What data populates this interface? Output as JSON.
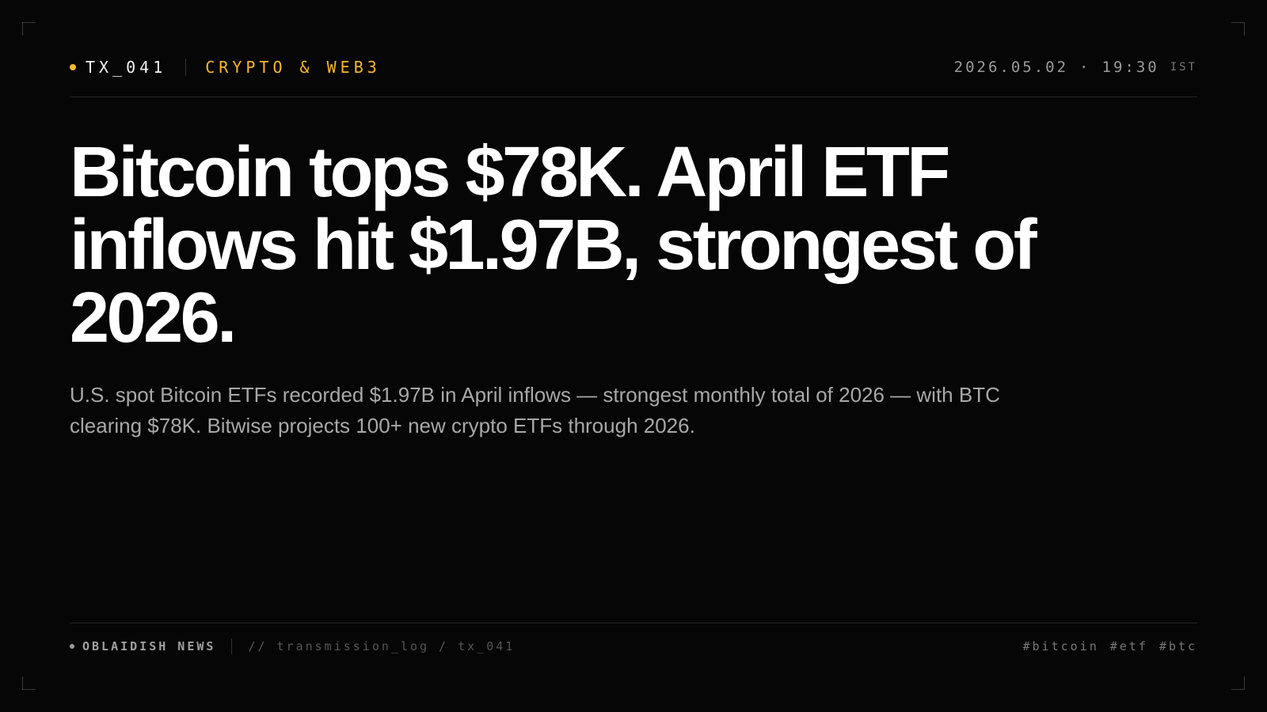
{
  "header": {
    "id": "TX_041",
    "category": "CRYPTO & WEB3",
    "date": "2026.05.02",
    "separator": "·",
    "time": "19:30",
    "timezone": "IST"
  },
  "headline": "Bitcoin tops $78K. April ETF inflows hit $1.97B, strongest of 2026.",
  "summary": "U.S. spot Bitcoin ETFs recorded $1.97B in April inflows — strongest monthly total of 2026 — with BTC clearing $78K. Bitwise projects 100+ new crypto ETFs through 2026.",
  "footer": {
    "brand": "OBLAIDISH NEWS",
    "path": "// transmission_log / tx_041",
    "tags": [
      "#bitcoin",
      "#etf",
      "#btc"
    ]
  }
}
